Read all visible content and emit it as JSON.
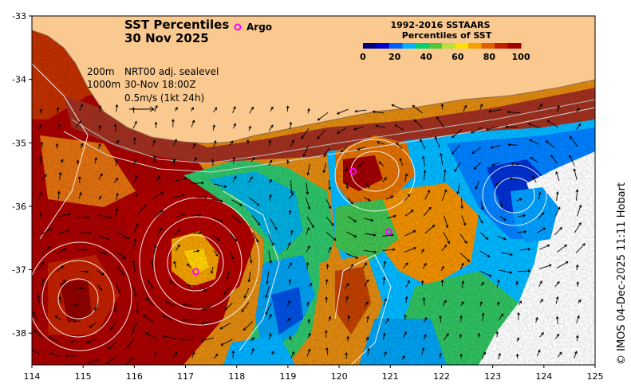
{
  "title": "SST Percentiles",
  "date": "30 Nov 2025",
  "argo_label": "Argo",
  "isobaths": [
    "200m",
    "1000m"
  ],
  "sealevel": {
    "product": "NRT00 adj. sealevel",
    "time": "30-Nov 18:00Z",
    "scale": "0.5m/s (1kt 24h)"
  },
  "colorbar": {
    "title1": "1992-2016 SSTAARS",
    "title2": "Percentiles of SST",
    "ticks": [
      "0",
      "20",
      "40",
      "60",
      "80",
      "100"
    ],
    "colors": [
      "#00007f",
      "#0000d0",
      "#0060ff",
      "#00b0ff",
      "#00d070",
      "#4ec83a",
      "#b8e03a",
      "#ffe000",
      "#f4a000",
      "#e06000",
      "#c02000",
      "#a00000"
    ]
  },
  "credit": "© IMOS 04-Dec-2025 11:11 Hobart",
  "axes": {
    "x_ticks": [
      "114",
      "115",
      "116",
      "117",
      "118",
      "119",
      "120",
      "121",
      "122",
      "123",
      "124",
      "125"
    ],
    "y_ticks": [
      "-33",
      "-34",
      "-35",
      "-36",
      "-37",
      "-38"
    ]
  },
  "argo_floats": [
    {
      "lon": 117.2,
      "lat": -37.03
    },
    {
      "lon": 120.27,
      "lat": -35.45
    },
    {
      "lon": 120.97,
      "lat": -36.4
    }
  ],
  "colors": {
    "land": "#fac98f",
    "argo": "#ff00ff",
    "contour": "#ffffff"
  }
}
